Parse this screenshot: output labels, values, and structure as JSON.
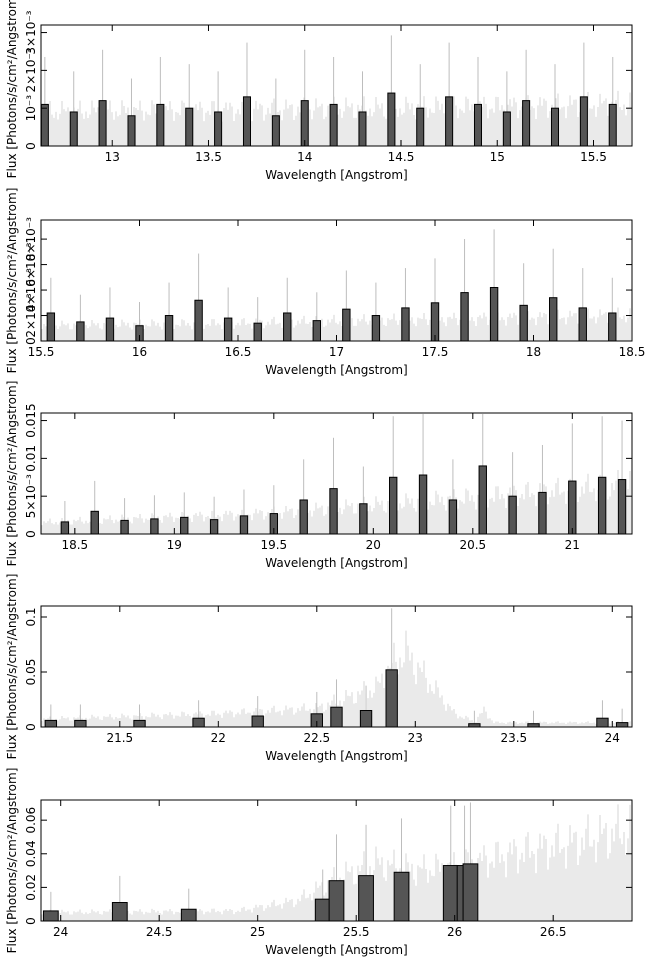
{
  "chart_data": [
    {
      "type": "line",
      "panel": 1,
      "xlabel": "Wavelength [Angstrom]",
      "ylabel": "Flux [Photons/s/cm²/Angstrom]",
      "xlim": [
        12.63,
        15.7
      ],
      "ylim": [
        0,
        0.0032
      ],
      "xticks": [
        13,
        13.5,
        14,
        14.5,
        15,
        15.5
      ],
      "xtick_labels": [
        "13",
        "13.5",
        "14",
        "14.5",
        "15",
        "15.5"
      ],
      "yticks": [
        0,
        0.001,
        0.002,
        0.003
      ],
      "ytick_labels": [
        "0",
        "10⁻³",
        "2×10⁻³",
        "3×10⁻³"
      ],
      "model": {
        "x": [
          12.63,
          13.5,
          14.5,
          15.7
        ],
        "y": [
          0.0009,
          0.00095,
          0.001,
          0.0011
        ]
      },
      "series": [
        {
          "name": "data",
          "x": [
            12.65,
            12.8,
            12.95,
            13.1,
            13.25,
            13.4,
            13.55,
            13.7,
            13.85,
            14.0,
            14.15,
            14.3,
            14.45,
            14.6,
            14.75,
            14.9,
            15.05,
            15.15,
            15.3,
            15.45,
            15.6
          ],
          "y": [
            0.0011,
            0.0009,
            0.0012,
            0.0008,
            0.0011,
            0.001,
            0.0009,
            0.0013,
            0.0008,
            0.0012,
            0.0011,
            0.0009,
            0.0014,
            0.001,
            0.0013,
            0.0011,
            0.0009,
            0.0012,
            0.001,
            0.0013,
            0.0011
          ]
        }
      ]
    },
    {
      "type": "line",
      "panel": 2,
      "xlabel": "Wavelength [Angstrom]",
      "ylabel": "Flux [Photons/s/cm²/Angstrom]",
      "xlim": [
        15.5,
        18.5
      ],
      "ylim": [
        0,
        0.0095
      ],
      "xticks": [
        15.5,
        16,
        16.5,
        17,
        17.5,
        18,
        18.5
      ],
      "xtick_labels": [
        "15.5",
        "16",
        "16.5",
        "17",
        "17.5",
        "18",
        "18.5"
      ],
      "yticks": [
        0,
        0.002,
        0.004,
        0.006,
        0.008
      ],
      "ytick_labels": [
        "0",
        "2×10⁻³",
        "4×10⁻³",
        "6×10⁻³",
        "8×10⁻³"
      ],
      "model": {
        "x": [
          15.5,
          16.5,
          17.5,
          18.5
        ],
        "y": [
          0.0012,
          0.0014,
          0.0017,
          0.002
        ]
      },
      "series": [
        {
          "name": "data",
          "x": [
            15.55,
            15.7,
            15.85,
            16.0,
            16.15,
            16.3,
            16.45,
            16.6,
            16.75,
            16.9,
            17.05,
            17.2,
            17.35,
            17.5,
            17.65,
            17.8,
            17.95,
            18.1,
            18.25,
            18.4
          ],
          "y": [
            0.0022,
            0.0015,
            0.0018,
            0.0012,
            0.002,
            0.0032,
            0.0018,
            0.0014,
            0.0022,
            0.0016,
            0.0025,
            0.002,
            0.0026,
            0.003,
            0.0038,
            0.0042,
            0.0028,
            0.0034,
            0.0026,
            0.0022
          ]
        }
      ]
    },
    {
      "type": "line",
      "panel": 3,
      "xlabel": "Wavelength [Angstrom]",
      "ylabel": "Flux [Photons/s/cm²/Angstrom]",
      "xlim": [
        18.33,
        21.3
      ],
      "ylim": [
        0,
        0.016
      ],
      "xticks": [
        18.5,
        19,
        19.5,
        20,
        20.5,
        21
      ],
      "xtick_labels": [
        "18.5",
        "19",
        "19.5",
        "20",
        "20.5",
        "21"
      ],
      "yticks": [
        0,
        0.005,
        0.01,
        0.015
      ],
      "ytick_labels": [
        "0",
        "5×10⁻³",
        "0.01",
        "0.015"
      ],
      "model": {
        "x": [
          18.33,
          19.5,
          20.5,
          21.3
        ],
        "y": [
          0.0015,
          0.0028,
          0.0048,
          0.0065
        ]
      },
      "series": [
        {
          "name": "data",
          "x": [
            18.45,
            18.6,
            18.75,
            18.9,
            19.05,
            19.2,
            19.35,
            19.5,
            19.65,
            19.8,
            19.95,
            20.1,
            20.25,
            20.4,
            20.55,
            20.7,
            20.85,
            21.0,
            21.15,
            21.25
          ],
          "y": [
            0.0016,
            0.003,
            0.0018,
            0.002,
            0.0022,
            0.0019,
            0.0024,
            0.0027,
            0.0045,
            0.006,
            0.004,
            0.0075,
            0.0078,
            0.0045,
            0.009,
            0.005,
            0.0055,
            0.007,
            0.0075,
            0.0072
          ]
        }
      ]
    },
    {
      "type": "line",
      "panel": 4,
      "xlabel": "Wavelength [Angstrom]",
      "ylabel": "Flux [Photons/s/cm²/Angstrom]",
      "xlim": [
        21.1,
        24.1
      ],
      "ylim": [
        0,
        0.11
      ],
      "xticks": [
        21.5,
        22,
        22.5,
        23,
        23.5,
        24
      ],
      "xtick_labels": [
        "21.5",
        "22",
        "22.5",
        "23",
        "23.5",
        "24"
      ],
      "yticks": [
        0,
        0.05,
        0.1
      ],
      "ytick_labels": [
        "0",
        "0.05",
        "0.1"
      ],
      "model": {
        "x": [
          21.1,
          22.0,
          22.5,
          22.8,
          22.9,
          22.95,
          23.05,
          23.2,
          23.3,
          23.35,
          23.4,
          24.1
        ],
        "y": [
          0.007,
          0.012,
          0.017,
          0.035,
          0.06,
          0.068,
          0.045,
          0.012,
          0.005,
          0.015,
          0.004,
          0.004
        ]
      },
      "series": [
        {
          "name": "data",
          "x": [
            21.15,
            21.3,
            21.6,
            21.9,
            22.2,
            22.5,
            22.6,
            22.75,
            22.88,
            23.3,
            23.6,
            23.95,
            24.05
          ],
          "y": [
            0.006,
            0.006,
            0.006,
            0.008,
            0.01,
            0.012,
            0.018,
            0.015,
            0.052,
            0.003,
            0.003,
            0.008,
            0.004
          ]
        }
      ]
    },
    {
      "type": "line",
      "panel": 5,
      "xlabel": "Wavelength [Angstrom]",
      "ylabel": "Flux [Photons/s/cm²/Angstrom]",
      "xlim": [
        23.9,
        26.9
      ],
      "ylim": [
        0,
        0.072
      ],
      "xticks": [
        24,
        24.5,
        25,
        25.5,
        26,
        26.5
      ],
      "xtick_labels": [
        "24",
        "24.5",
        "25",
        "25.5",
        "26",
        "26.5"
      ],
      "yticks": [
        0,
        0.02,
        0.04,
        0.06
      ],
      "ytick_labels": [
        "0",
        "0.02",
        "0.04",
        "0.06"
      ],
      "model": {
        "x": [
          23.9,
          24.9,
          25.2,
          25.4,
          25.6,
          25.8,
          26.0,
          26.3,
          26.6,
          26.9
        ],
        "y": [
          0.005,
          0.006,
          0.012,
          0.025,
          0.034,
          0.03,
          0.032,
          0.04,
          0.046,
          0.054
        ]
      },
      "series": [
        {
          "name": "data",
          "x": [
            23.95,
            24.3,
            24.65,
            25.33,
            25.4,
            25.55,
            25.73,
            25.98,
            26.05,
            26.08
          ],
          "y": [
            0.006,
            0.011,
            0.007,
            0.013,
            0.024,
            0.027,
            0.029,
            0.033,
            0.033,
            0.034
          ]
        }
      ]
    }
  ]
}
